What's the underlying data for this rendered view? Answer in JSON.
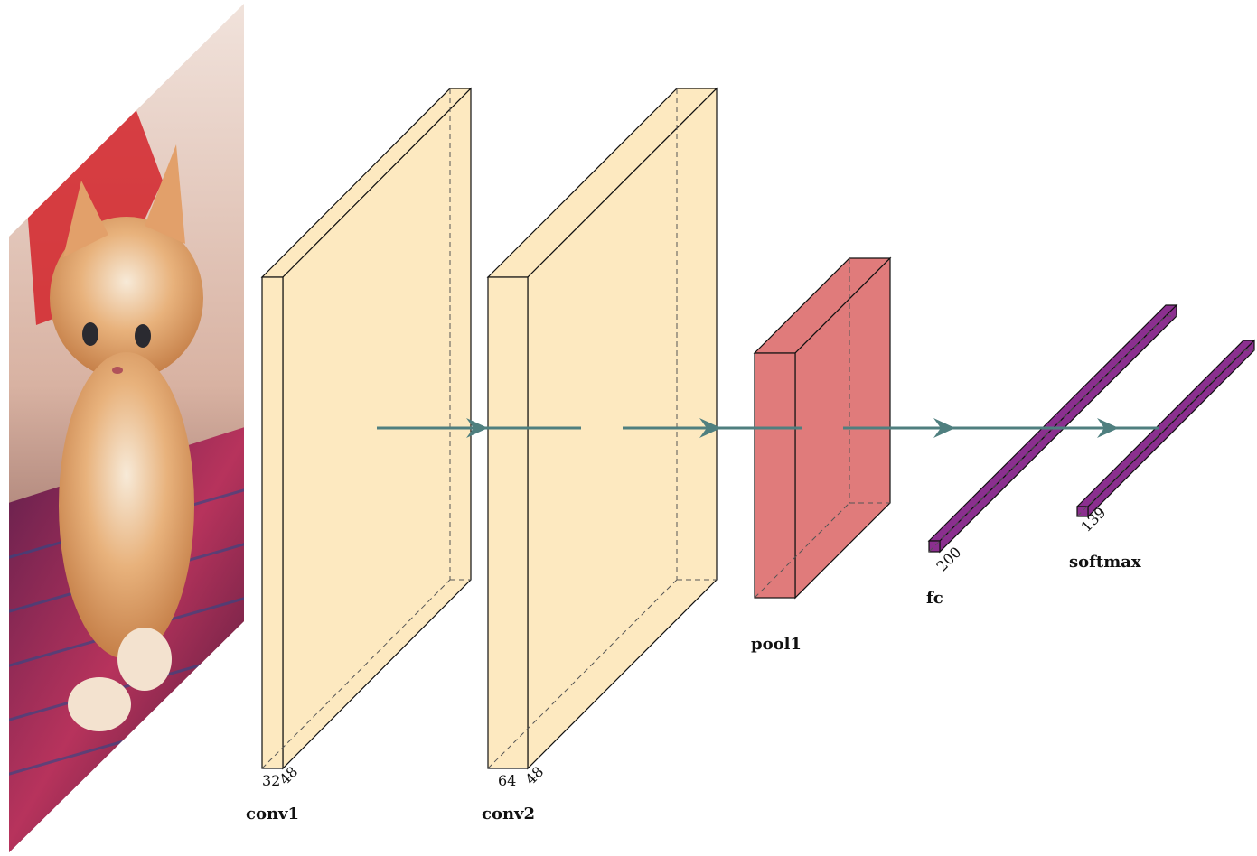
{
  "layers": {
    "conv1": {
      "label": "conv1",
      "dim_a": "32",
      "dim_b": "48"
    },
    "conv2": {
      "label": "conv2",
      "dim_a": "64",
      "dim_b": "48"
    },
    "pool1": {
      "label": "pool1"
    },
    "fc": {
      "label": "fc",
      "dim_a": "200"
    },
    "softmax": {
      "label": "softmax",
      "dim_a": "139"
    }
  },
  "colors": {
    "conv_fill": "#fde9c0",
    "pool_fill": "#e07b7b",
    "fc_fill": "#8b2f8f",
    "arrow": "#4f7f7f"
  },
  "input_image": {
    "subject": "kitten-photo"
  }
}
